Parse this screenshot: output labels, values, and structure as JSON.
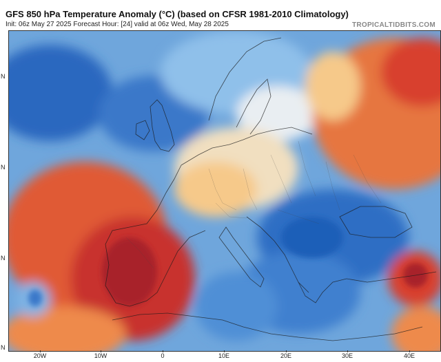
{
  "header": {
    "title": "GFS 850 hPa Temperature Anomaly (°C) (based on CFSR 1981-2010 Climatology)",
    "subtitle": "Init: 06z May 27 2025   Forecast Hour: [24]   valid at 06z Wed, May 28 2025",
    "brand": "TROPICALTIDBITS.COM"
  },
  "map": {
    "lat_labels": [
      "N",
      "N",
      "N",
      "N"
    ],
    "lon_labels": [
      "20W",
      "10W",
      "0",
      "10E",
      "20E",
      "30E",
      "40E"
    ],
    "colors": {
      "deep_blue": "#1f5fb8",
      "blue": "#4f8fd6",
      "light_blue": "#9ec8ee",
      "pale": "#f3f1ea",
      "light_orange": "#f6c98a",
      "orange": "#ee8a4c",
      "red": "#d8412f",
      "dark_red": "#a8232c"
    }
  }
}
